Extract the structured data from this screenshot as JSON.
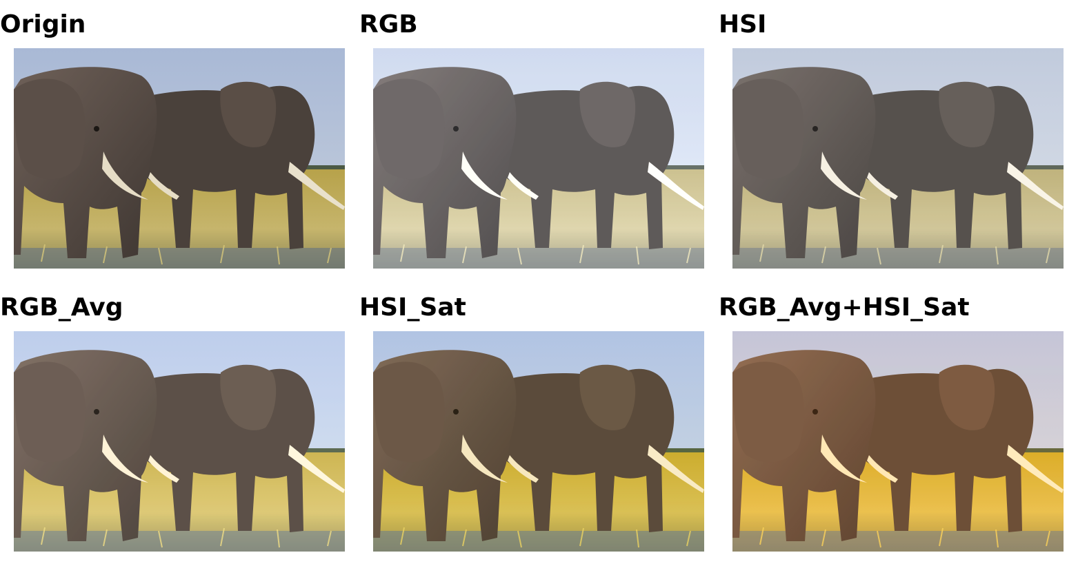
{
  "panels": [
    {
      "title": "Origin",
      "filter": "none",
      "tint": "#000000",
      "tint_opacity": 0.0
    },
    {
      "title": "RGB",
      "filter": "saturate(0.55) brightness(1.12) contrast(1.1)",
      "tint": "#c7d3ff",
      "tint_opacity": 0.12
    },
    {
      "title": "HSI",
      "filter": "saturate(0.6) brightness(1.08)",
      "tint": "#ffffff",
      "tint_opacity": 0.05
    },
    {
      "title": "RGB_Avg",
      "filter": "saturate(1.05) brightness(1.1)",
      "tint": "#fff2cc",
      "tint_opacity": 0.05
    },
    {
      "title": "HSI_Sat",
      "filter": "saturate(1.35) brightness(1.05)",
      "tint": "#ffe066",
      "tint_opacity": 0.05
    },
    {
      "title": "RGB_Avg+HSI_Sat",
      "filter": "saturate(1.6) brightness(1.08) sepia(0.15)",
      "tint": "#d97f3a",
      "tint_opacity": 0.12
    }
  ],
  "image_description_icons": [
    "elephant-pair-photo"
  ]
}
